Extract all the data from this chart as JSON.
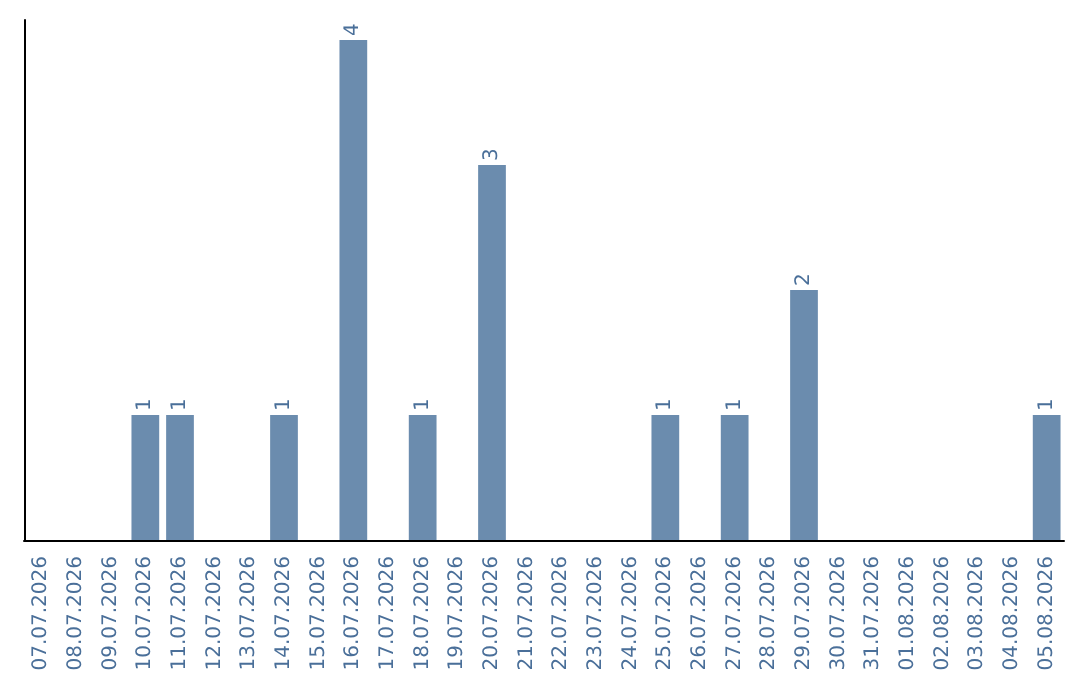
{
  "chart_data": {
    "type": "bar",
    "categories": [
      "07.07.2026",
      "08.07.2026",
      "09.07.2026",
      "10.07.2026",
      "11.07.2026",
      "12.07.2026",
      "13.07.2026",
      "14.07.2026",
      "15.07.2026",
      "16.07.2026",
      "17.07.2026",
      "18.07.2026",
      "19.07.2026",
      "20.07.2026",
      "21.07.2026",
      "22.07.2026",
      "23.07.2026",
      "24.07.2026",
      "25.07.2026",
      "26.07.2026",
      "27.07.2026",
      "28.07.2026",
      "29.07.2026",
      "30.07.2026",
      "31.07.2026",
      "01.08.2026",
      "02.08.2026",
      "03.08.2026",
      "04.08.2026",
      "05.08.2026"
    ],
    "values": [
      0,
      0,
      0,
      1,
      1,
      0,
      0,
      1,
      0,
      4,
      0,
      1,
      0,
      3,
      0,
      0,
      0,
      0,
      1,
      0,
      1,
      0,
      2,
      0,
      0,
      0,
      0,
      0,
      0,
      1
    ],
    "value_labels": [
      null,
      null,
      null,
      "1",
      "1",
      null,
      null,
      "1",
      null,
      "4",
      null,
      "1",
      null,
      "3",
      null,
      null,
      null,
      null,
      "1",
      null,
      "1",
      null,
      "2",
      null,
      null,
      null,
      null,
      null,
      null,
      "1"
    ],
    "color": "#6b8cae",
    "tick_labels": "x"
  }
}
